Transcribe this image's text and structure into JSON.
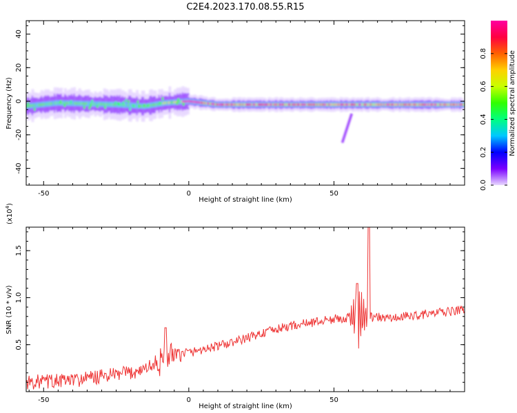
{
  "title": "C2E4.2023.170.08.55.R15",
  "chart_data": [
    {
      "type": "heatmap",
      "xlabel": "Height of straight line (km)",
      "ylabel": "Frequency (Hz)",
      "xlim": [
        -56,
        95
      ],
      "ylim": [
        -50,
        48
      ],
      "x_ticks": [
        -50,
        0,
        50
      ],
      "y_ticks": [
        -40,
        -20,
        0,
        20,
        40
      ],
      "colorbar": {
        "label": "Normalized spectral amplitude",
        "range": [
          0,
          1
        ],
        "ticks": [
          "0.0",
          "0.2",
          "0.4",
          "0.6",
          "0.8"
        ],
        "colors": [
          "#e8d8ff",
          "#7a00ff",
          "#0000ff",
          "#00c8ff",
          "#00ff80",
          "#30ff00",
          "#c8ff00",
          "#ffd000",
          "#ff6000",
          "#ff0040",
          "#ff00a0"
        ]
      },
      "band": {
        "center_hz": [
          [
            -56,
            -3
          ],
          [
            -45,
            -1
          ],
          [
            -35,
            -1.5
          ],
          [
            -25,
            -2
          ],
          [
            -15,
            -3
          ],
          [
            -8,
            -1
          ],
          [
            0,
            0
          ],
          [
            10,
            -2
          ],
          [
            30,
            -2
          ],
          [
            60,
            -2
          ],
          [
            95,
            -2
          ]
        ],
        "secondary_feature": {
          "x": [
            56,
            53
          ],
          "y": [
            -8,
            -24
          ]
        }
      }
    },
    {
      "type": "line",
      "xlabel": "Height of straight line (km)",
      "ylabel": "SNR (10 * v/v)",
      "y_scale_label": "(x10",
      "y_scale_exp": "4",
      "y_scale_tail": ")",
      "xlim": [
        -56,
        95
      ],
      "ylim": [
        0,
        1.75
      ],
      "x_ticks": [
        -50,
        0,
        50
      ],
      "y_ticks": [
        "0.5",
        "1.0",
        "1.5"
      ],
      "color": "#ee3333",
      "trend": [
        [
          -56,
          0.1
        ],
        [
          -40,
          0.12
        ],
        [
          -30,
          0.16
        ],
        [
          -20,
          0.2
        ],
        [
          -12,
          0.28
        ],
        [
          -5,
          0.38
        ],
        [
          5,
          0.45
        ],
        [
          15,
          0.52
        ],
        [
          25,
          0.62
        ],
        [
          35,
          0.7
        ],
        [
          45,
          0.75
        ],
        [
          52,
          0.78
        ],
        [
          60,
          0.8
        ],
        [
          70,
          0.78
        ],
        [
          80,
          0.82
        ],
        [
          90,
          0.85
        ],
        [
          95,
          0.88
        ]
      ],
      "peaks": [
        {
          "x": 62,
          "y": 1.75
        },
        {
          "x": 58,
          "y": 1.15
        },
        {
          "x": -8,
          "y": 0.68
        }
      ]
    }
  ]
}
